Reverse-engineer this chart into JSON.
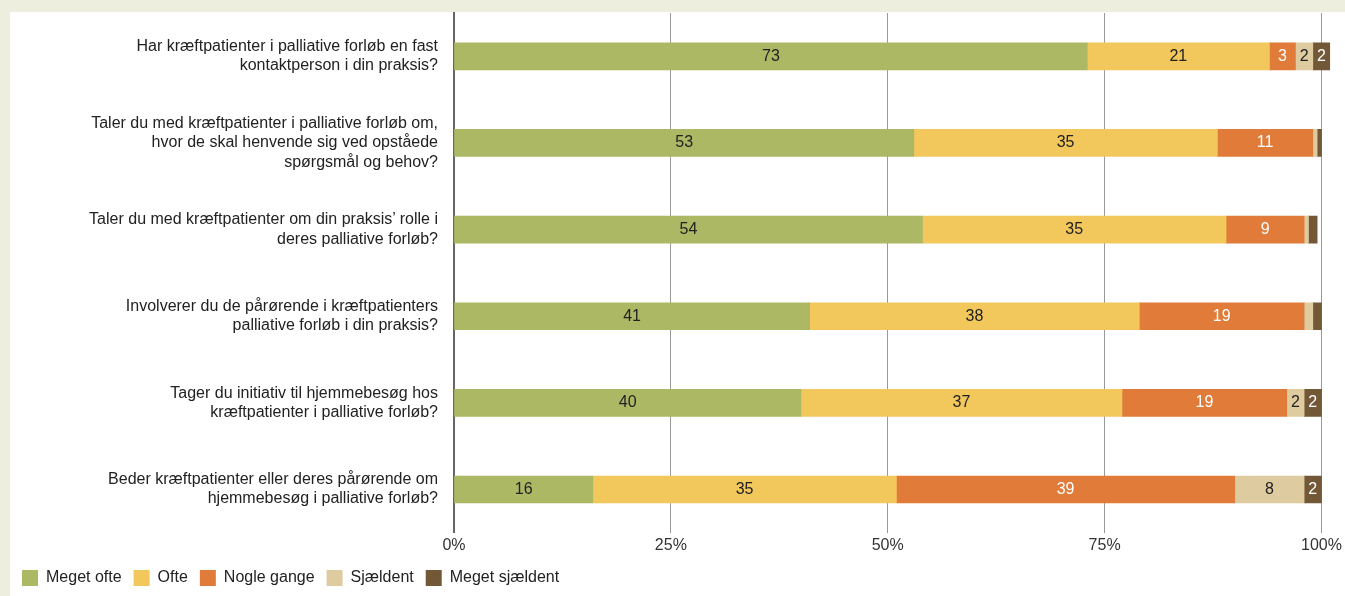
{
  "chart_data": {
    "type": "bar",
    "orientation": "horizontal",
    "stacked": true,
    "categories": [
      "Har kræftpatienter i palliative forløb en fast kontaktperson i din praksis?",
      "Taler du med kræftpatienter i palliative forløb om, hvor de skal henvende sig ved opståede spørgsmål og behov?",
      "Taler du med kræftpatienter om din praksis’ rolle i deres palliative forløb?",
      "Involverer du de pårørende i kræftpatienters palliative forløb i din praksis?",
      "Tager du initiativ til hjemmebesøg hos kræftpatienter i palliative forløb?",
      "Beder kræftpatienter eller deres pårørende om hjemmebesøg i palliative forløb?"
    ],
    "series": [
      {
        "name": "Meget ofte",
        "color": "#adb865",
        "values": [
          73,
          53,
          54,
          41,
          40,
          16
        ],
        "value_labels": [
          "73",
          "53",
          "54",
          "41",
          "40",
          "16"
        ]
      },
      {
        "name": "Ofte",
        "color": "#f2c75c",
        "values": [
          21,
          35,
          35,
          38,
          37,
          35
        ],
        "value_labels": [
          "21",
          "35",
          "35",
          "38",
          "37",
          "35"
        ]
      },
      {
        "name": "Nogle gange",
        "color": "#e07b39",
        "values": [
          3,
          11,
          9,
          19,
          19,
          39
        ],
        "value_labels": [
          "3",
          "11",
          "9",
          "19",
          "19",
          "39"
        ]
      },
      {
        "name": "Sjældent",
        "color": "#dfcba0",
        "values": [
          2,
          0.5,
          0.5,
          1,
          2,
          8
        ],
        "value_labels": [
          "2",
          null,
          null,
          null,
          "2",
          "8"
        ]
      },
      {
        "name": "Meget sjældent",
        "color": "#735838",
        "values": [
          2,
          0.5,
          1,
          1,
          2,
          2
        ],
        "value_labels": [
          "2",
          null,
          null,
          null,
          "2",
          "2"
        ]
      }
    ],
    "xlim": [
      0,
      101
    ],
    "xticks": [
      {
        "value": 0,
        "label": "0%"
      },
      {
        "value": 25,
        "label": "25%"
      },
      {
        "value": 50,
        "label": "50%"
      },
      {
        "value": 75,
        "label": "75%"
      },
      {
        "value": 100,
        "label": "100%"
      }
    ],
    "grid": "x",
    "legend": "bottom left"
  }
}
